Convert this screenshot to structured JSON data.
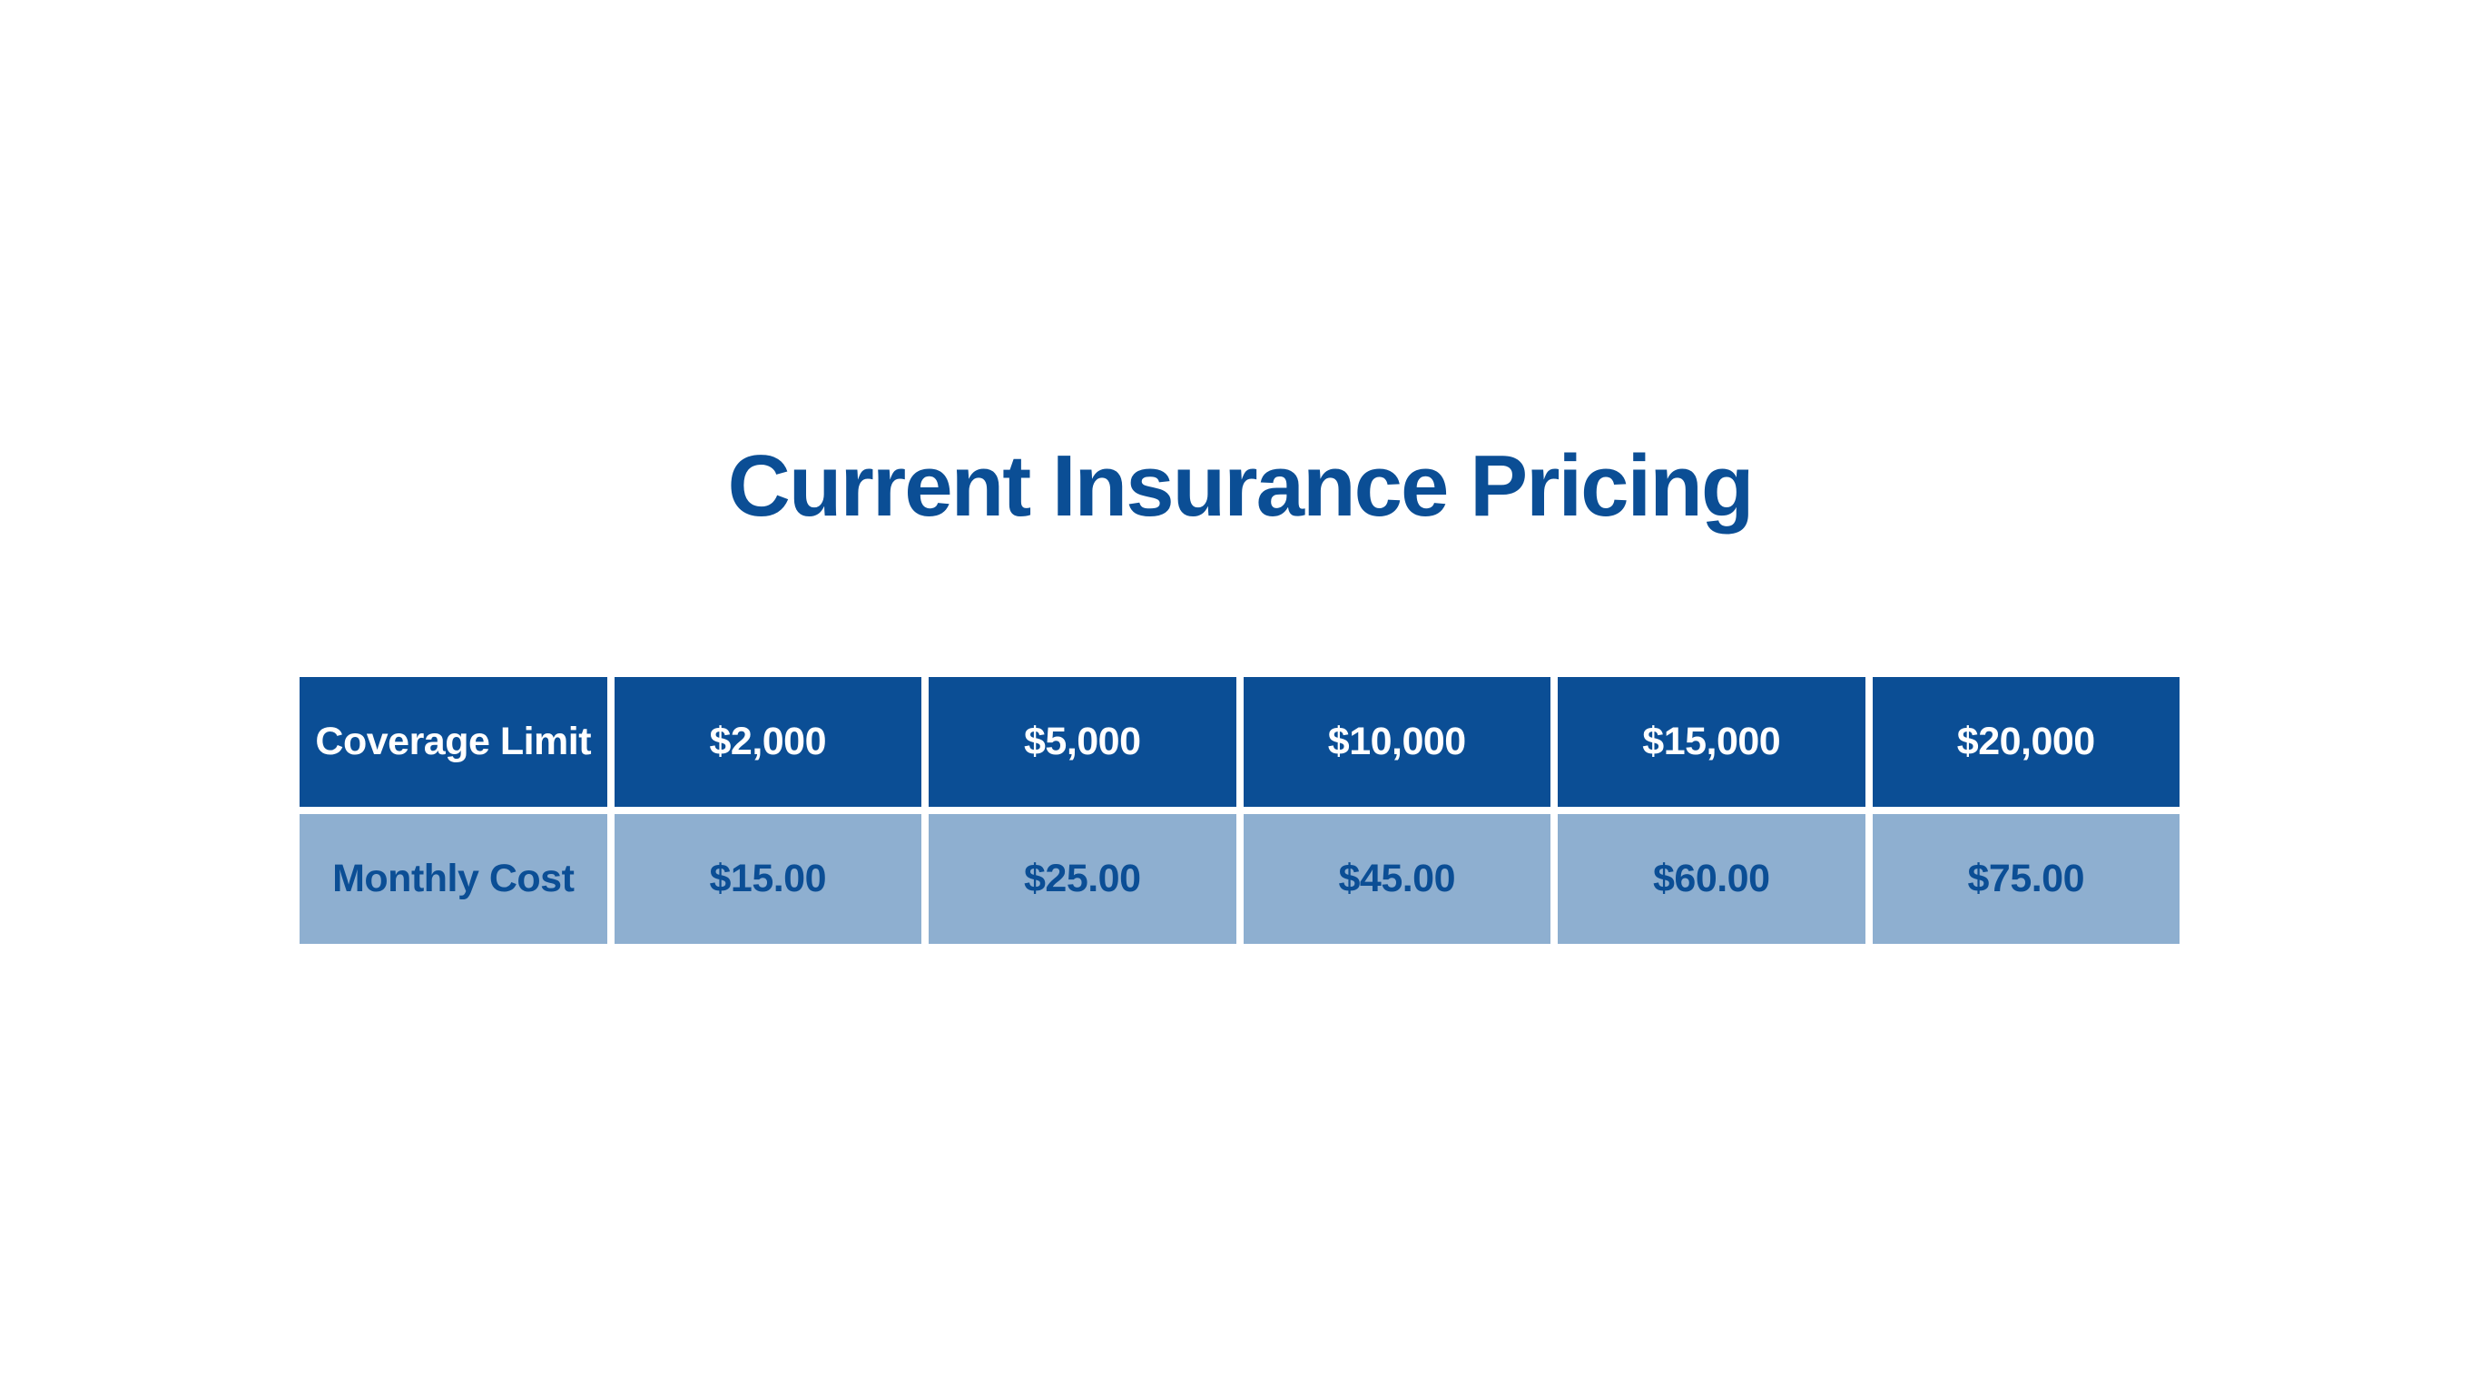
{
  "theme": {
    "background": "#FFFFFF",
    "primary_blue": "#0B4E95",
    "light_blue": "#8EAFD0",
    "header_text": "#FFFFFF"
  },
  "title": {
    "text": "Current Insurance Pricing"
  },
  "table": {
    "rows": [
      {
        "name": "coverage-limit",
        "cells": [
          "Coverage Limit",
          "$2,000",
          "$5,000",
          "$10,000",
          "$15,000",
          "$20,000"
        ]
      },
      {
        "name": "monthly-cost",
        "cells": [
          "Monthly Cost",
          "$15.00",
          "$25.00",
          "$45.00",
          "$60.00",
          "$75.00"
        ]
      }
    ]
  },
  "chart_data": {
    "type": "table",
    "title": "Current Insurance Pricing",
    "columns": [
      "Coverage Limit",
      "$2,000",
      "$5,000",
      "$10,000",
      "$15,000",
      "$20,000"
    ],
    "rows": [
      [
        "Monthly Cost",
        "$15.00",
        "$25.00",
        "$45.00",
        "$60.00",
        "$75.00"
      ]
    ],
    "series": [
      {
        "name": "Coverage Limit ($)",
        "values": [
          2000,
          5000,
          10000,
          15000,
          20000
        ]
      },
      {
        "name": "Monthly Cost ($/month)",
        "values": [
          15.0,
          25.0,
          45.0,
          60.0,
          75.0
        ]
      }
    ],
    "legend_position": "none",
    "grid": false
  }
}
